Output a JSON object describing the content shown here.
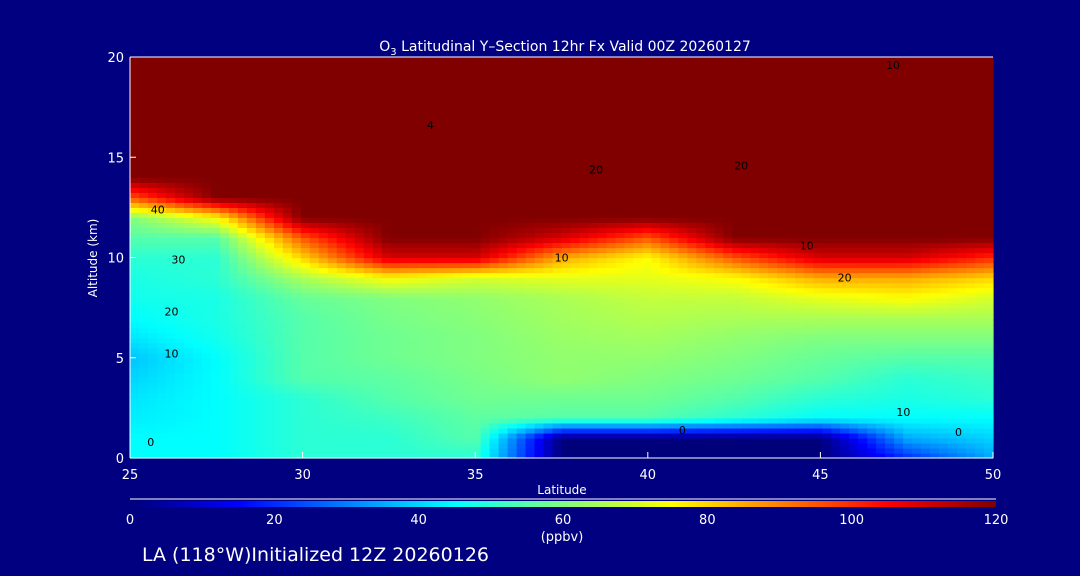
{
  "chart_data": {
    "type": "heatmap",
    "title_prefix": "O",
    "title_sub": "3",
    "title_rest": " Latitudinal Y–Section 12hr  Fx Valid 00Z 20260127",
    "xlabel": "Latitude",
    "ylabel": "Altitude (km)",
    "xlim": [
      25,
      50
    ],
    "ylim": [
      0,
      20
    ],
    "xticks": [
      "25",
      "30",
      "35",
      "40",
      "45",
      "50"
    ],
    "yticks": [
      "0",
      "5",
      "10",
      "15",
      "20"
    ],
    "x": [
      25,
      27.5,
      30,
      32.5,
      35,
      37.5,
      40,
      42.5,
      45,
      47.5,
      50
    ],
    "y": [
      0,
      1,
      2,
      3,
      4,
      5,
      6,
      7,
      8,
      9,
      10,
      11,
      12,
      13,
      14,
      15,
      16,
      17,
      18,
      19,
      20
    ],
    "z": [
      [
        45,
        45,
        50,
        50,
        50,
        0,
        0,
        0,
        0,
        20,
        35
      ],
      [
        45,
        45,
        50,
        50,
        55,
        0,
        0,
        0,
        0,
        35,
        40
      ],
      [
        43,
        45,
        50,
        52,
        56,
        55,
        55,
        50,
        45,
        45,
        45
      ],
      [
        42,
        45,
        50,
        55,
        58,
        58,
        58,
        55,
        50,
        48,
        50
      ],
      [
        40,
        45,
        55,
        56,
        59,
        62,
        60,
        58,
        55,
        50,
        52
      ],
      [
        38,
        45,
        55,
        58,
        60,
        62,
        62,
        60,
        57,
        55,
        55
      ],
      [
        42,
        47,
        55,
        58,
        60,
        63,
        64,
        62,
        60,
        60,
        60
      ],
      [
        45,
        48,
        55,
        59,
        61,
        64,
        66,
        65,
        65,
        65,
        65
      ],
      [
        47,
        48,
        57,
        60,
        62,
        65,
        68,
        68,
        72,
        75,
        70
      ],
      [
        48,
        50,
        65,
        75,
        70,
        72,
        72,
        75,
        85,
        85,
        80
      ],
      [
        50,
        50,
        80,
        110,
        110,
        85,
        75,
        95,
        110,
        110,
        100
      ],
      [
        55,
        55,
        95,
        120,
        120,
        110,
        95,
        120,
        120,
        120,
        120
      ],
      [
        60,
        75,
        120,
        120,
        120,
        120,
        120,
        120,
        120,
        120,
        120
      ],
      [
        95,
        120,
        120,
        120,
        120,
        120,
        120,
        120,
        120,
        120,
        120
      ],
      [
        120,
        120,
        120,
        120,
        120,
        120,
        120,
        120,
        120,
        120,
        120
      ],
      [
        120,
        120,
        120,
        120,
        120,
        120,
        120,
        120,
        120,
        120,
        120
      ],
      [
        120,
        120,
        120,
        120,
        120,
        120,
        120,
        120,
        120,
        120,
        120
      ],
      [
        120,
        120,
        120,
        120,
        120,
        120,
        120,
        120,
        120,
        120,
        120
      ],
      [
        120,
        120,
        120,
        120,
        120,
        120,
        120,
        120,
        120,
        120,
        120
      ],
      [
        120,
        120,
        120,
        120,
        120,
        120,
        120,
        120,
        120,
        120,
        120
      ],
      [
        120,
        120,
        120,
        120,
        120,
        120,
        120,
        120,
        120,
        120,
        120
      ]
    ],
    "contour_labels": [
      {
        "text": "40",
        "lat": 25.6,
        "alt": 12.4
      },
      {
        "text": "30",
        "lat": 26.2,
        "alt": 9.9
      },
      {
        "text": "20",
        "lat": 26.0,
        "alt": 7.3
      },
      {
        "text": "10",
        "lat": 26.0,
        "alt": 5.2
      },
      {
        "text": "0",
        "lat": 25.5,
        "alt": 0.8
      },
      {
        "text": "10",
        "lat": 37.3,
        "alt": 10.0
      },
      {
        "text": "20",
        "lat": 38.3,
        "alt": 14.4
      },
      {
        "text": "20",
        "lat": 42.5,
        "alt": 14.6
      },
      {
        "text": "10",
        "lat": 46.9,
        "alt": 19.6
      },
      {
        "text": "4",
        "lat": 33.6,
        "alt": 16.6
      },
      {
        "text": "10",
        "lat": 44.4,
        "alt": 10.6
      },
      {
        "text": "20",
        "lat": 45.5,
        "alt": 9.0
      },
      {
        "text": "10",
        "lat": 47.2,
        "alt": 2.3
      },
      {
        "text": "0",
        "lat": 40.9,
        "alt": 1.4
      },
      {
        "text": "0",
        "lat": 48.9,
        "alt": 1.3
      }
    ],
    "colorbar": {
      "range": [
        0,
        120
      ],
      "ticks": [
        "0",
        "20",
        "40",
        "60",
        "80",
        "100",
        "120"
      ],
      "unit": "(ppbv)",
      "colors": [
        "#00007a",
        "#0000ff",
        "#0080ff",
        "#00ffff",
        "#80ff80",
        "#ffff00",
        "#ff8000",
        "#ff0000",
        "#800000"
      ]
    }
  },
  "footer": {
    "text": "LA (118°W)Initialized 12Z 20260126"
  },
  "colors": {
    "background": "#000080",
    "foreground": "#ffffff"
  }
}
